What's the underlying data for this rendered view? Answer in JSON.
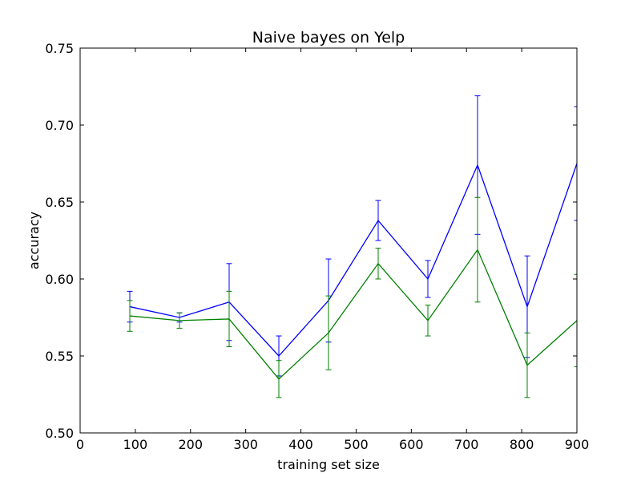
{
  "chart_data": {
    "type": "line",
    "title": "Naive bayes on Yelp",
    "xlabel": "training set size",
    "ylabel": "accuracy",
    "xlim": [
      0,
      900
    ],
    "ylim": [
      0.5,
      0.75
    ],
    "xticks": [
      "0",
      "100",
      "200",
      "300",
      "400",
      "500",
      "600",
      "700",
      "800",
      "900"
    ],
    "yticks": [
      "0.50",
      "0.55",
      "0.60",
      "0.65",
      "0.70",
      "0.75"
    ],
    "grid": false,
    "legend": "none",
    "x": [
      90,
      180,
      270,
      360,
      450,
      540,
      630,
      720,
      810,
      900
    ],
    "series": [
      {
        "color": "#0000ff",
        "values": [
          0.582,
          0.575,
          0.585,
          0.55,
          0.586,
          0.638,
          0.6,
          0.674,
          0.582,
          0.675
        ],
        "errors": [
          0.01,
          0.003,
          0.025,
          0.013,
          0.027,
          0.013,
          0.012,
          0.045,
          0.033,
          0.037
        ]
      },
      {
        "color": "#008000",
        "values": [
          0.576,
          0.573,
          0.574,
          0.535,
          0.565,
          0.61,
          0.573,
          0.619,
          0.544,
          0.573
        ],
        "errors": [
          0.01,
          0.005,
          0.018,
          0.012,
          0.024,
          0.01,
          0.01,
          0.034,
          0.021,
          0.03
        ]
      }
    ]
  }
}
